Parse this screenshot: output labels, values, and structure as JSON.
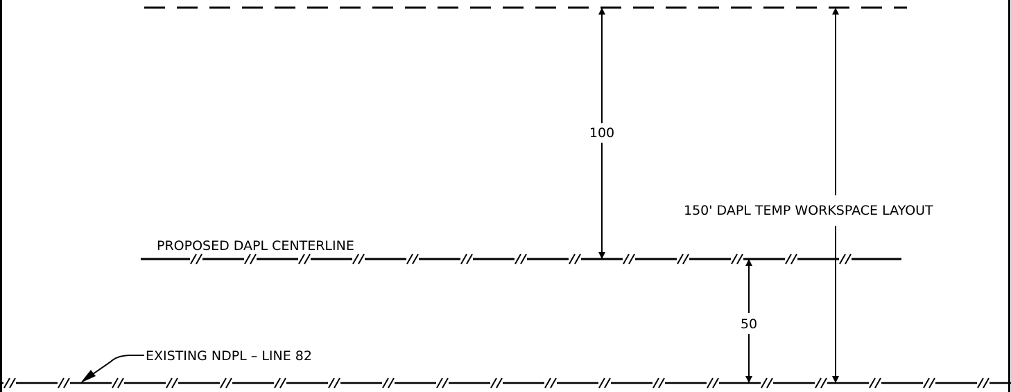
{
  "labels": {
    "proposed_centerline": "PROPOSED DAPL CENTERLINE",
    "existing_line": "EXISTING NDPL – LINE 82",
    "workspace": "150' DAPL TEMP WORKSPACE LAYOUT",
    "dim_100": "100",
    "dim_50": "50"
  },
  "colors": {
    "line": "#000000",
    "background": "#ffffff"
  }
}
